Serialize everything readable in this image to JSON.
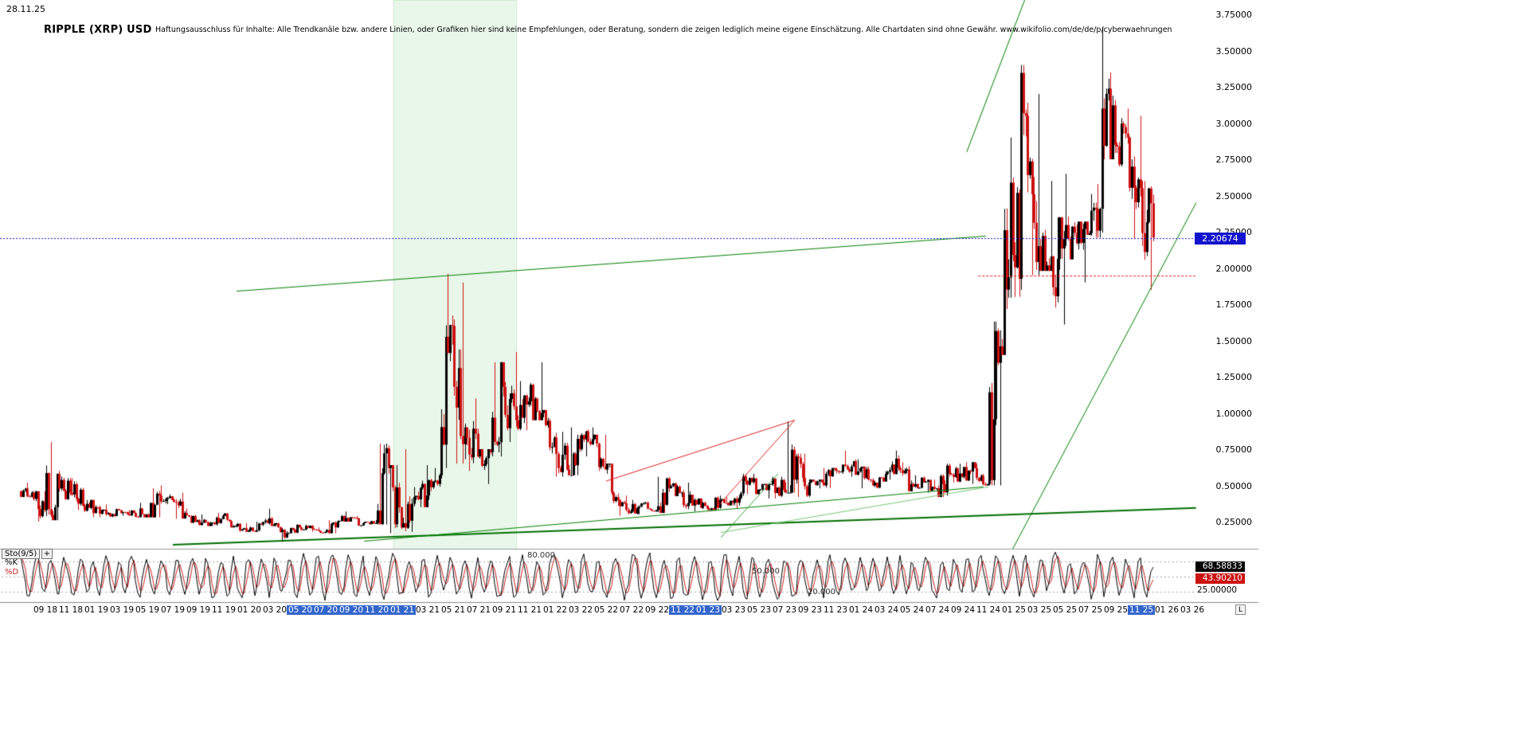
{
  "meta": {
    "date_label": "28.11.25",
    "title": "RIPPLE (XRP) USD",
    "disclaimer": "Haftungsausschluss für Inhalte: Alle Trendkanäle bzw. andere Linien, oder Grafiken hier sind keine Empfehlungen, oder Beratung, sondern die zeigen lediglich meine eigene Einschätzung. Alle Chartdaten sind ohne Gewähr.  www.wikifolio.com/de/de/p/cyberwaehrungen"
  },
  "colors": {
    "up": "#000000",
    "down": "#cc1111",
    "trend_green": "#008000",
    "trend_green_light": "#79c879",
    "trend_red": "#dd2222",
    "band_fill": "#e9f7ea",
    "band_edge": "#cdeccd",
    "price_line_blue": "#1a1acd",
    "price_box_bg": "#1414cc",
    "sto_k": "#000000",
    "sto_d": "#cc2222",
    "xlabel_highlight": "#3366cc"
  },
  "price_axis": {
    "labels": [
      "3.75000",
      "3.50000",
      "3.25000",
      "3.00000",
      "2.75000",
      "2.50000",
      "2.25000",
      "2.00000",
      "1.75000",
      "1.50000",
      "1.25000",
      "1.00000",
      "0.75000",
      "0.50000",
      "0.25000"
    ],
    "current": "2.20674",
    "current_value": 2.20674,
    "min": 0.25,
    "max": 3.75,
    "step": 0.25
  },
  "x_axis": {
    "labels": [
      "09 18",
      "11 18",
      "01 19",
      "03 19",
      "05 19",
      "07 19",
      "09 19",
      "11 19",
      "01 20",
      "03 20",
      "05 20",
      "07 20",
      "09 20",
      "11 20",
      "01 21",
      "03 21",
      "05 21",
      "07 21",
      "09 21",
      "11 21",
      "01 22",
      "03 22",
      "05 22",
      "07 22",
      "09 22",
      "11 22",
      "01 23",
      "03 23",
      "05 23",
      "07 23",
      "09 23",
      "11 23",
      "01 24",
      "03 24",
      "05 24",
      "07 24",
      "09 24",
      "11 24",
      "01 25",
      "03 25",
      "05 25",
      "07 25",
      "09 25",
      "11 25",
      "01 26",
      "03 26"
    ],
    "highlighted": [
      "05 20",
      "07 20",
      "09 20",
      "11 20",
      "01 21",
      "11 22",
      "01 23",
      "11 25"
    ],
    "corner_label": "L"
  },
  "stochastic": {
    "name": "Sto(9/5)",
    "add_button": "+",
    "k_label": "%K",
    "d_label": "%D",
    "k_value": "68.58833",
    "d_value": "43.90210",
    "k": 68.58833,
    "d": 43.9021,
    "axis_label": "25.00000",
    "levels": [
      {
        "value": 80,
        "label": "80.000"
      },
      {
        "value": 50,
        "label": "50.000"
      },
      {
        "value": 20,
        "label": "20.000"
      }
    ]
  },
  "chart_data": {
    "type": "candlestick",
    "title": "RIPPLE (XRP) USD",
    "timeframe_start": "07.2018",
    "timeframe_end": "28.11.2025",
    "ylim": [
      0.05,
      3.8
    ],
    "y_ticks": [
      0.25,
      0.5,
      0.75,
      1.0,
      1.25,
      1.5,
      1.75,
      2.0,
      2.25,
      2.5,
      2.75,
      3.0,
      3.25,
      3.5,
      3.75
    ],
    "current_price": 2.20674,
    "columns": [
      "month",
      "open",
      "high",
      "low",
      "close"
    ],
    "candles": [
      [
        "07.18",
        0.46,
        0.52,
        0.42,
        0.45
      ],
      [
        "08.18",
        0.45,
        0.46,
        0.25,
        0.33
      ],
      [
        "09.18",
        0.33,
        0.8,
        0.26,
        0.58
      ],
      [
        "10.18",
        0.58,
        0.6,
        0.4,
        0.45
      ],
      [
        "11.18",
        0.45,
        0.55,
        0.33,
        0.36
      ],
      [
        "12.18",
        0.36,
        0.4,
        0.28,
        0.35
      ],
      [
        "01.19",
        0.35,
        0.37,
        0.28,
        0.31
      ],
      [
        "02.19",
        0.31,
        0.34,
        0.28,
        0.31
      ],
      [
        "03.19",
        0.31,
        0.33,
        0.29,
        0.31
      ],
      [
        "04.19",
        0.31,
        0.38,
        0.28,
        0.3
      ],
      [
        "05.19",
        0.3,
        0.48,
        0.28,
        0.43
      ],
      [
        "06.19",
        0.43,
        0.5,
        0.37,
        0.4
      ],
      [
        "07.19",
        0.4,
        0.45,
        0.27,
        0.31
      ],
      [
        "08.19",
        0.31,
        0.34,
        0.24,
        0.26
      ],
      [
        "09.19",
        0.26,
        0.3,
        0.22,
        0.24
      ],
      [
        "10.19",
        0.24,
        0.31,
        0.22,
        0.29
      ],
      [
        "11.19",
        0.29,
        0.31,
        0.21,
        0.22
      ],
      [
        "12.19",
        0.22,
        0.24,
        0.18,
        0.19
      ],
      [
        "01.20",
        0.19,
        0.25,
        0.18,
        0.23
      ],
      [
        "02.20",
        0.23,
        0.34,
        0.22,
        0.23
      ],
      [
        "03.20",
        0.23,
        0.24,
        0.11,
        0.17
      ],
      [
        "04.20",
        0.17,
        0.23,
        0.17,
        0.21
      ],
      [
        "05.20",
        0.21,
        0.23,
        0.18,
        0.2
      ],
      [
        "06.20",
        0.2,
        0.21,
        0.17,
        0.18
      ],
      [
        "07.20",
        0.18,
        0.26,
        0.17,
        0.25
      ],
      [
        "08.20",
        0.25,
        0.32,
        0.25,
        0.28
      ],
      [
        "09.20",
        0.28,
        0.29,
        0.22,
        0.24
      ],
      [
        "10.20",
        0.24,
        0.26,
        0.23,
        0.24
      ],
      [
        "11.20",
        0.24,
        0.79,
        0.23,
        0.62
      ],
      [
        "12.20",
        0.62,
        0.64,
        0.17,
        0.21
      ],
      [
        "01.21",
        0.21,
        0.75,
        0.18,
        0.42
      ],
      [
        "02.21",
        0.42,
        0.64,
        0.35,
        0.43
      ],
      [
        "03.21",
        0.43,
        0.62,
        0.4,
        0.57
      ],
      [
        "04.21",
        0.57,
        1.96,
        0.55,
        1.6
      ],
      [
        "05.21",
        1.6,
        1.9,
        0.65,
        0.9
      ],
      [
        "06.21",
        0.9,
        1.1,
        0.6,
        0.7
      ],
      [
        "07.21",
        0.7,
        0.75,
        0.51,
        0.73
      ],
      [
        "08.21",
        0.73,
        1.35,
        0.7,
        1.18
      ],
      [
        "09.21",
        1.18,
        1.42,
        0.8,
        0.95
      ],
      [
        "10.21",
        0.95,
        1.22,
        0.88,
        1.08
      ],
      [
        "11.21",
        1.08,
        1.35,
        0.95,
        1.0
      ],
      [
        "12.21",
        1.0,
        1.02,
        0.72,
        0.83
      ],
      [
        "01.22",
        0.83,
        0.87,
        0.56,
        0.61
      ],
      [
        "02.22",
        0.61,
        0.9,
        0.57,
        0.75
      ],
      [
        "03.22",
        0.75,
        0.9,
        0.7,
        0.82
      ],
      [
        "04.22",
        0.82,
        0.85,
        0.6,
        0.61
      ],
      [
        "05.22",
        0.61,
        0.65,
        0.36,
        0.4
      ],
      [
        "06.22",
        0.4,
        0.43,
        0.29,
        0.32
      ],
      [
        "07.22",
        0.32,
        0.4,
        0.3,
        0.38
      ],
      [
        "08.22",
        0.38,
        0.39,
        0.32,
        0.33
      ],
      [
        "09.22",
        0.33,
        0.56,
        0.31,
        0.48
      ],
      [
        "10.22",
        0.48,
        0.52,
        0.42,
        0.45
      ],
      [
        "11.22",
        0.45,
        0.52,
        0.32,
        0.4
      ],
      [
        "12.22",
        0.4,
        0.41,
        0.33,
        0.34
      ],
      [
        "01.23",
        0.34,
        0.43,
        0.33,
        0.4
      ],
      [
        "02.23",
        0.4,
        0.42,
        0.36,
        0.38
      ],
      [
        "03.23",
        0.38,
        0.58,
        0.34,
        0.53
      ],
      [
        "04.23",
        0.53,
        0.58,
        0.44,
        0.47
      ],
      [
        "05.23",
        0.47,
        0.51,
        0.41,
        0.51
      ],
      [
        "06.23",
        0.51,
        0.56,
        0.41,
        0.47
      ],
      [
        "07.23",
        0.47,
        0.94,
        0.45,
        0.7
      ],
      [
        "08.23",
        0.7,
        0.72,
        0.42,
        0.52
      ],
      [
        "09.23",
        0.52,
        0.54,
        0.48,
        0.52
      ],
      [
        "10.23",
        0.52,
        0.62,
        0.48,
        0.61
      ],
      [
        "11.23",
        0.61,
        0.74,
        0.58,
        0.61
      ],
      [
        "12.23",
        0.61,
        0.68,
        0.56,
        0.62
      ],
      [
        "01.24",
        0.62,
        0.63,
        0.48,
        0.5
      ],
      [
        "02.24",
        0.5,
        0.6,
        0.48,
        0.58
      ],
      [
        "03.24",
        0.58,
        0.74,
        0.54,
        0.62
      ],
      [
        "04.24",
        0.62,
        0.66,
        0.46,
        0.51
      ],
      [
        "05.24",
        0.51,
        0.57,
        0.48,
        0.52
      ],
      [
        "06.24",
        0.52,
        0.54,
        0.45,
        0.48
      ],
      [
        "07.24",
        0.48,
        0.65,
        0.42,
        0.58
      ],
      [
        "08.24",
        0.58,
        0.65,
        0.52,
        0.56
      ],
      [
        "09.24",
        0.56,
        0.66,
        0.51,
        0.62
      ],
      [
        "10.24",
        0.62,
        0.65,
        0.5,
        0.51
      ],
      [
        "11.24",
        0.51,
        1.63,
        0.5,
        1.46
      ],
      [
        "12.24",
        1.46,
        2.9,
        1.4,
        2.09
      ],
      [
        "01.25",
        2.09,
        3.4,
        1.8,
        3.05
      ],
      [
        "02.25",
        3.05,
        3.2,
        1.95,
        2.15
      ],
      [
        "03.25",
        2.15,
        2.6,
        1.98,
        2.08
      ],
      [
        "04.25",
        2.08,
        2.35,
        1.61,
        2.2
      ],
      [
        "05.25",
        2.2,
        2.65,
        2.06,
        2.17
      ],
      [
        "06.25",
        2.17,
        2.32,
        1.9,
        2.24
      ],
      [
        "07.25",
        2.24,
        3.66,
        2.21,
        3.1
      ],
      [
        "08.25",
        3.1,
        3.35,
        2.75,
        2.85
      ],
      [
        "09.25",
        2.85,
        3.1,
        2.7,
        2.9
      ],
      [
        "10.25",
        2.9,
        3.05,
        2.2,
        2.55
      ],
      [
        "11.25",
        2.55,
        2.6,
        1.85,
        2.21
      ]
    ],
    "annotations": {
      "highlight_band": {
        "from": "01.21",
        "to": "09.21",
        "t1": 29.3,
        "t2": 39.0
      },
      "hlines": [
        {
          "name": "current-price-line",
          "price": 2.20674,
          "t1": -1.6,
          "t2": 92.4,
          "color": "#1a1acd",
          "dash": [
            2,
            2
          ]
        },
        {
          "name": "breakout-retest-line",
          "price": 1.95,
          "t1": 75.2,
          "t2": 92.4,
          "color": "#ee2222",
          "dash": [
            3,
            2
          ]
        }
      ],
      "trendlines": [
        {
          "name": "long-resistance",
          "t1": 17.0,
          "p1": 1.84,
          "t2": 75.8,
          "p2": 2.22,
          "color": "#008000",
          "width": 1
        },
        {
          "name": "rally-channel-upper",
          "t1": 74.3,
          "p1": 2.8,
          "t2": 79.2,
          "p2": 3.93,
          "color": "#008000",
          "width": 1
        },
        {
          "name": "rally-channel-lower",
          "t1": 77.9,
          "p1": 0.06,
          "t2": 92.3,
          "p2": 2.45,
          "color": "#008000",
          "width": 1
        },
        {
          "name": "major-support",
          "t1": 12.0,
          "p1": 0.09,
          "t2": 92.3,
          "p2": 0.345,
          "color": "#007000",
          "width": 2
        },
        {
          "name": "secondary-support",
          "t1": 27.0,
          "p1": 0.115,
          "t2": 75.6,
          "p2": 0.49,
          "color": "#008000",
          "width": 1
        },
        {
          "name": "light-support",
          "t1": 55.0,
          "p1": 0.175,
          "t2": 76.0,
          "p2": 0.49,
          "color": "#79c879",
          "width": 1
        },
        {
          "name": "wedge-upper-red",
          "t1": 46.0,
          "p1": 0.53,
          "t2": 60.8,
          "p2": 0.95,
          "color": "#dd2222",
          "width": 1
        },
        {
          "name": "wedge-lower-red",
          "t1": 54.5,
          "p1": 0.33,
          "t2": 60.8,
          "p2": 0.95,
          "color": "#dd2222",
          "width": 1
        },
        {
          "name": "short-steep-support",
          "t1": 55.0,
          "p1": 0.14,
          "t2": 59.5,
          "p2": 0.58,
          "color": "#3aa33a",
          "width": 1
        }
      ]
    },
    "indicator": {
      "name": "Sto(9/5)",
      "k_current": 68.58833,
      "d_current": 43.9021,
      "levels": [
        80,
        50,
        20
      ]
    }
  }
}
